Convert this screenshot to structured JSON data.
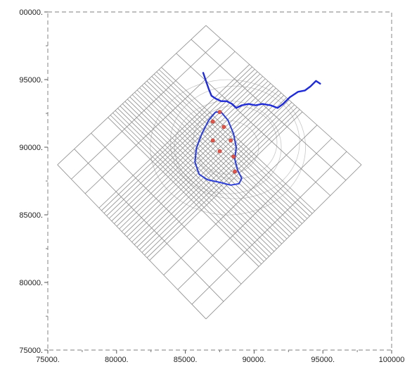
{
  "colors": {
    "frame": "#999999",
    "grid": "#8c8c8c",
    "faint": "#c8c8c8",
    "river": "#1f2bd6",
    "boundary": "#2b3ed8",
    "wells": "#e0564a"
  },
  "chart_data": {
    "type": "scatter",
    "title": "",
    "xlabel": "",
    "ylabel": "",
    "xlim": [
      75000,
      100000
    ],
    "ylim": [
      75000,
      100000
    ],
    "x_ticks": [
      "75000.",
      "80000.",
      "85000.",
      "90000.",
      "95000.",
      "100000"
    ],
    "y_ticks": [
      "75000.",
      "80000.",
      "85000.",
      "90000.",
      "95000.",
      "00000."
    ],
    "grid_corners": [
      {
        "x": 86500,
        "y": 99000
      },
      {
        "x": 97800,
        "y": 88700
      },
      {
        "x": 86500,
        "y": 77300
      },
      {
        "x": 75700,
        "y": 88700
      }
    ],
    "river": [
      {
        "x": 86300,
        "y": 95500
      },
      {
        "x": 86500,
        "y": 94900
      },
      {
        "x": 86700,
        "y": 94300
      },
      {
        "x": 86900,
        "y": 93800
      },
      {
        "x": 87200,
        "y": 93600
      },
      {
        "x": 87600,
        "y": 93400
      },
      {
        "x": 88000,
        "y": 93400
      },
      {
        "x": 88400,
        "y": 93200
      },
      {
        "x": 88700,
        "y": 92900
      },
      {
        "x": 89100,
        "y": 93100
      },
      {
        "x": 89600,
        "y": 93200
      },
      {
        "x": 90100,
        "y": 93100
      },
      {
        "x": 90600,
        "y": 93200
      },
      {
        "x": 91200,
        "y": 93100
      },
      {
        "x": 91700,
        "y": 92900
      },
      {
        "x": 92100,
        "y": 93200
      },
      {
        "x": 92600,
        "y": 93700
      },
      {
        "x": 93200,
        "y": 94100
      },
      {
        "x": 93700,
        "y": 94200
      },
      {
        "x": 94100,
        "y": 94500
      },
      {
        "x": 94500,
        "y": 94900
      },
      {
        "x": 94800,
        "y": 94700
      }
    ],
    "boundary": [
      {
        "x": 87200,
        "y": 92600
      },
      {
        "x": 86700,
        "y": 92000
      },
      {
        "x": 86200,
        "y": 91000
      },
      {
        "x": 85800,
        "y": 89900
      },
      {
        "x": 85700,
        "y": 88900
      },
      {
        "x": 86000,
        "y": 88000
      },
      {
        "x": 86600,
        "y": 87600
      },
      {
        "x": 87500,
        "y": 87400
      },
      {
        "x": 88300,
        "y": 87200
      },
      {
        "x": 88900,
        "y": 87300
      },
      {
        "x": 89100,
        "y": 87700
      },
      {
        "x": 88800,
        "y": 88300
      },
      {
        "x": 88600,
        "y": 89100
      },
      {
        "x": 88700,
        "y": 90000
      },
      {
        "x": 88500,
        "y": 91000
      },
      {
        "x": 88100,
        "y": 92000
      },
      {
        "x": 87600,
        "y": 92600
      },
      {
        "x": 87200,
        "y": 92600
      }
    ],
    "wells": [
      {
        "x": 87500,
        "y": 92600
      },
      {
        "x": 87000,
        "y": 91900
      },
      {
        "x": 87800,
        "y": 91500
      },
      {
        "x": 87000,
        "y": 90500
      },
      {
        "x": 88300,
        "y": 90500
      },
      {
        "x": 87500,
        "y": 89700
      },
      {
        "x": 88500,
        "y": 89300
      },
      {
        "x": 88600,
        "y": 88200
      }
    ]
  }
}
